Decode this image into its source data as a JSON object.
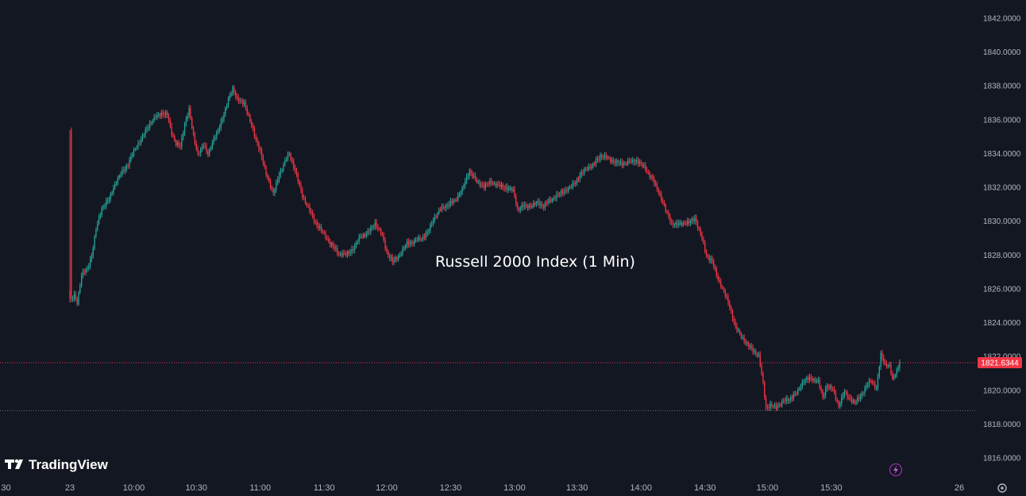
{
  "brand": {
    "logo_text": "TradingView"
  },
  "chart_data": {
    "type": "candlestick",
    "title": "Russell 2000 Index (1 Min)",
    "ylim": [
      1815.0,
      1843.0
    ],
    "y_ticks": [
      "1842.0000",
      "1840.0000",
      "1838.0000",
      "1836.0000",
      "1834.0000",
      "1832.0000",
      "1830.0000",
      "1828.0000",
      "1826.0000",
      "1824.0000",
      "1822.0000",
      "1820.0000",
      "1818.0000",
      "1816.0000"
    ],
    "x_ticks": [
      "30",
      "23",
      "10:00",
      "10:30",
      "11:00",
      "11:30",
      "12:00",
      "12:30",
      "13:00",
      "13:30",
      "14:00",
      "14:30",
      "15:00",
      "15:30",
      "26"
    ],
    "last_price": 1821.6344,
    "last_price_label": "1821.6344",
    "session_low_line": 1818.8,
    "up_color": "#26a69a",
    "down_color": "#f23645",
    "background": "#131722",
    "price_path": [
      [
        0,
        1835.4
      ],
      [
        1,
        1825.3
      ],
      [
        3,
        1825.6
      ],
      [
        5,
        1825.2
      ],
      [
        8,
        1826.8
      ],
      [
        12,
        1827.2
      ],
      [
        15,
        1828.0
      ],
      [
        18,
        1829.5
      ],
      [
        22,
        1830.8
      ],
      [
        27,
        1831.3
      ],
      [
        30,
        1832.0
      ],
      [
        35,
        1832.8
      ],
      [
        40,
        1833.4
      ],
      [
        45,
        1834.3
      ],
      [
        50,
        1835.0
      ],
      [
        55,
        1835.8
      ],
      [
        60,
        1836.2
      ],
      [
        63,
        1836.4
      ],
      [
        67,
        1836.3
      ],
      [
        70,
        1835.2
      ],
      [
        73,
        1834.6
      ],
      [
        76,
        1834.4
      ],
      [
        79,
        1835.8
      ],
      [
        82,
        1836.6
      ],
      [
        85,
        1835.0
      ],
      [
        88,
        1834.0
      ],
      [
        92,
        1834.5
      ],
      [
        95,
        1834.0
      ],
      [
        98,
        1834.6
      ],
      [
        102,
        1835.4
      ],
      [
        107,
        1836.6
      ],
      [
        112,
        1837.9
      ],
      [
        115,
        1837.2
      ],
      [
        120,
        1837.0
      ],
      [
        125,
        1835.6
      ],
      [
        130,
        1834.4
      ],
      [
        135,
        1832.8
      ],
      [
        140,
        1831.6
      ],
      [
        144,
        1832.8
      ],
      [
        148,
        1833.5
      ],
      [
        151,
        1834.0
      ],
      [
        155,
        1833.0
      ],
      [
        160,
        1831.5
      ],
      [
        165,
        1830.6
      ],
      [
        170,
        1829.8
      ],
      [
        175,
        1829.2
      ],
      [
        180,
        1828.6
      ],
      [
        185,
        1828.1
      ],
      [
        190,
        1828.0
      ],
      [
        195,
        1828.4
      ],
      [
        200,
        1829.1
      ],
      [
        205,
        1829.3
      ],
      [
        210,
        1829.9
      ],
      [
        215,
        1829.1
      ],
      [
        218,
        1828.2
      ],
      [
        222,
        1827.6
      ],
      [
        227,
        1828.0
      ],
      [
        232,
        1828.7
      ],
      [
        237,
        1828.8
      ],
      [
        242,
        1829.0
      ],
      [
        246,
        1829.3
      ],
      [
        250,
        1830.1
      ],
      [
        255,
        1830.7
      ],
      [
        260,
        1831.0
      ],
      [
        265,
        1831.2
      ],
      [
        270,
        1831.9
      ],
      [
        275,
        1833.0
      ],
      [
        280,
        1832.3
      ],
      [
        285,
        1832.1
      ],
      [
        290,
        1832.3
      ],
      [
        295,
        1832.1
      ],
      [
        300,
        1832.0
      ],
      [
        305,
        1831.8
      ],
      [
        308,
        1830.7
      ],
      [
        312,
        1830.9
      ],
      [
        318,
        1830.9
      ],
      [
        322,
        1831.1
      ],
      [
        326,
        1830.9
      ],
      [
        330,
        1831.2
      ],
      [
        335,
        1831.5
      ],
      [
        340,
        1831.8
      ],
      [
        345,
        1832.0
      ],
      [
        350,
        1832.6
      ],
      [
        355,
        1833.1
      ],
      [
        360,
        1833.3
      ],
      [
        365,
        1833.9
      ],
      [
        370,
        1833.7
      ],
      [
        375,
        1833.5
      ],
      [
        380,
        1833.4
      ],
      [
        385,
        1833.5
      ],
      [
        390,
        1833.6
      ],
      [
        395,
        1833.2
      ],
      [
        400,
        1832.6
      ],
      [
        405,
        1831.8
      ],
      [
        410,
        1830.6
      ],
      [
        414,
        1829.9
      ],
      [
        418,
        1829.8
      ],
      [
        422,
        1829.9
      ],
      [
        426,
        1829.9
      ],
      [
        430,
        1830.2
      ],
      [
        434,
        1829.2
      ],
      [
        438,
        1828.0
      ],
      [
        442,
        1827.6
      ],
      [
        446,
        1826.6
      ],
      [
        450,
        1825.8
      ],
      [
        454,
        1825.0
      ],
      [
        458,
        1823.7
      ],
      [
        462,
        1823.2
      ],
      [
        466,
        1822.7
      ],
      [
        470,
        1822.4
      ],
      [
        474,
        1822.0
      ],
      [
        477,
        1820.4
      ],
      [
        479,
        1819.0
      ],
      [
        482,
        1819.1
      ],
      [
        486,
        1819.0
      ],
      [
        490,
        1819.3
      ],
      [
        495,
        1819.5
      ],
      [
        500,
        1819.8
      ],
      [
        505,
        1820.6
      ],
      [
        510,
        1820.7
      ],
      [
        515,
        1820.5
      ],
      [
        518,
        1819.6
      ],
      [
        521,
        1820.3
      ],
      [
        525,
        1820.0
      ],
      [
        529,
        1819.1
      ],
      [
        533,
        1819.9
      ],
      [
        537,
        1819.5
      ],
      [
        540,
        1819.2
      ],
      [
        544,
        1819.7
      ],
      [
        548,
        1820.2
      ],
      [
        551,
        1820.6
      ],
      [
        555,
        1820.1
      ],
      [
        558,
        1822.1
      ],
      [
        561,
        1821.6
      ],
      [
        564,
        1821.4
      ],
      [
        566,
        1820.6
      ],
      [
        569,
        1821.2
      ],
      [
        571,
        1821.6
      ]
    ]
  }
}
